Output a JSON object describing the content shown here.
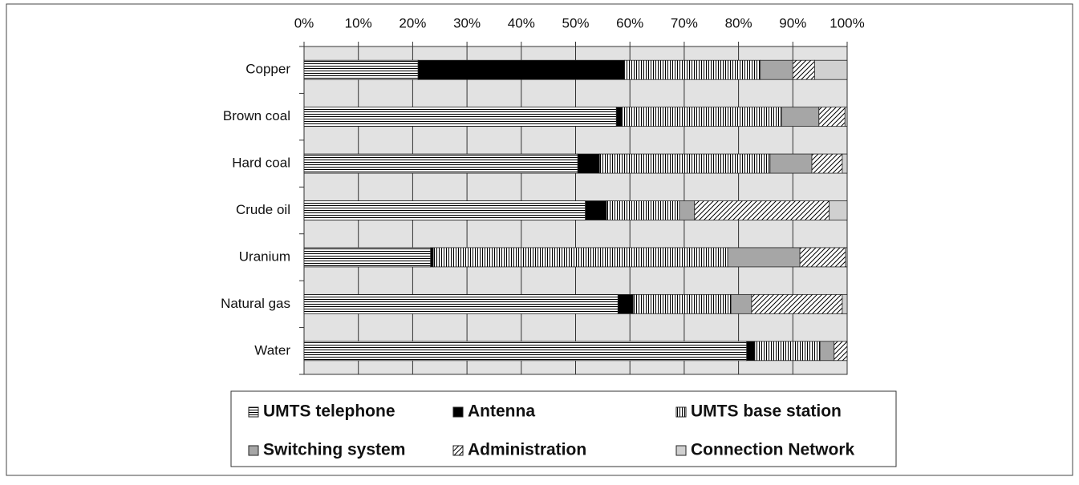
{
  "chart_data": {
    "type": "stacked_barh",
    "categories": [
      "Copper",
      "Brown coal",
      "Hard coal",
      "Crude oil",
      "Uranium",
      "Natural gas",
      "Water"
    ],
    "series": [
      {
        "name": "UMTS telephone",
        "color": "#000000",
        "values": [
          21,
          57.5,
          50.4,
          51.8,
          23.3,
          57.8,
          81.5
        ]
      },
      {
        "name": "Antenna",
        "color": "#000000",
        "values": [
          38,
          1.1,
          4,
          3.9,
          0.5,
          2.8,
          1.5
        ]
      },
      {
        "name": "UMTS base station",
        "color": "#000000",
        "values": [
          25,
          29.3,
          31.4,
          13.4,
          54.2,
          18,
          12
        ]
      },
      {
        "name": "Switching system",
        "color": "#a6a6a6",
        "values": [
          6,
          6.9,
          7.7,
          2.8,
          13.3,
          3.8,
          2.6
        ]
      },
      {
        "name": "Administration",
        "color": "#000000",
        "values": [
          4,
          4.8,
          5.6,
          24.8,
          8.4,
          16.7,
          2.4
        ]
      },
      {
        "name": "Connection Network",
        "color": "#d0d0d0",
        "values": [
          6,
          0.4,
          0.9,
          3.3,
          0.3,
          0.9,
          0
        ]
      }
    ],
    "xlim": [
      0,
      100
    ],
    "xticks": [
      {
        "value": 0,
        "label": "0%"
      },
      {
        "value": 10,
        "label": "10%"
      },
      {
        "value": 20,
        "label": "20%"
      },
      {
        "value": 30,
        "label": "30%"
      },
      {
        "value": 40,
        "label": "40%"
      },
      {
        "value": 50,
        "label": "50%"
      },
      {
        "value": 60,
        "label": "60%"
      },
      {
        "value": 70,
        "label": "70%"
      },
      {
        "value": 80,
        "label": "80%"
      },
      {
        "value": 90,
        "label": "90%"
      },
      {
        "value": 100,
        "label": "100%"
      }
    ],
    "grid": true
  }
}
